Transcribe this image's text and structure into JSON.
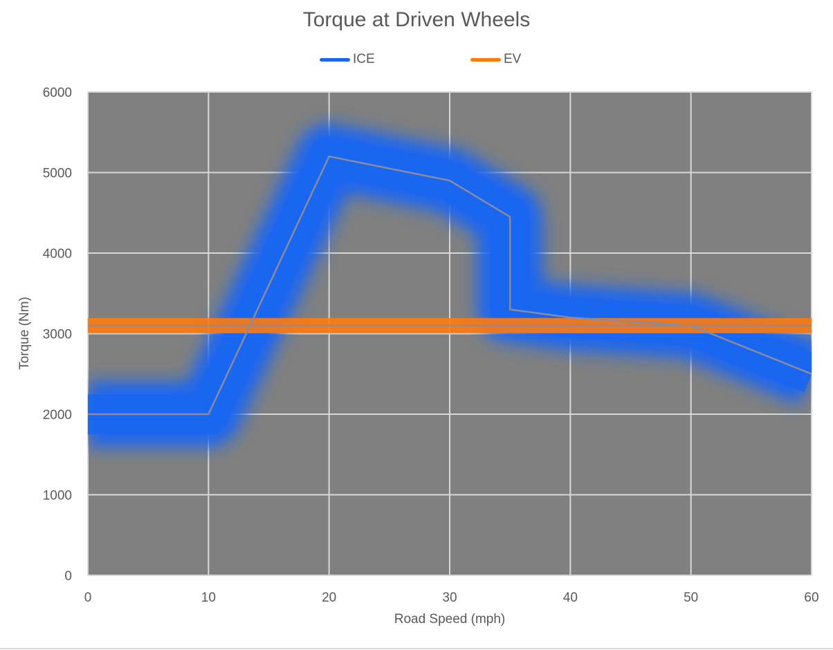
{
  "chart_data": {
    "type": "line",
    "title": "Torque at Driven Wheels",
    "xlabel": "Road Speed (mph)",
    "ylabel": "Torque (Nm)",
    "xlim": [
      0,
      60
    ],
    "ylim": [
      0,
      6000
    ],
    "x_ticks": [
      "0",
      "10",
      "20",
      "30",
      "40",
      "50",
      "60"
    ],
    "y_ticks": [
      "0",
      "1000",
      "2000",
      "3000",
      "4000",
      "5000",
      "6000"
    ],
    "grid": true,
    "legend_position": "top",
    "plot_background": "#808080",
    "series": [
      {
        "name": "ICE",
        "color": "#1a66f0",
        "x": [
          0,
          10,
          20,
          30,
          35,
          35,
          40,
          50,
          60
        ],
        "y": [
          2000,
          2000,
          5200,
          4900,
          4450,
          3300,
          3200,
          3100,
          2500
        ]
      },
      {
        "name": "EV",
        "color": "#ff7a0d",
        "x": [
          0,
          60
        ],
        "y": [
          3100,
          3100
        ]
      }
    ]
  }
}
